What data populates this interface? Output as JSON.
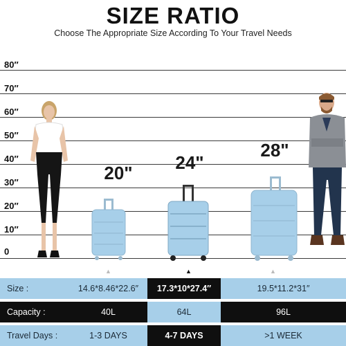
{
  "header": {
    "title": "SIZE RATIO",
    "subtitle": "Choose The Appropriate Size According To Your Travel Needs"
  },
  "scale": {
    "ticks": [
      "0",
      "10″",
      "20″",
      "30″",
      "40″",
      "50″",
      "60″",
      "70″",
      "80″"
    ]
  },
  "luggage": [
    {
      "label": "20\"",
      "height_in": 22.6
    },
    {
      "label": "24\"",
      "height_in": 27.4
    },
    {
      "label": "28\"",
      "height_in": 31
    }
  ],
  "colors": {
    "luggage_blue": "#a7cfe9",
    "row_light": "#a7cfe9",
    "row_dark": "#0f0f0f"
  },
  "table": {
    "rows": [
      {
        "label": "Size :",
        "values": [
          "14.6*8.46*22.6″",
          "17.3*10*27.4″",
          "19.5*11.2*31″"
        ]
      },
      {
        "label": "Capacity :",
        "values": [
          "40L",
          "64L",
          "96L"
        ]
      },
      {
        "label": "Travel Days :",
        "values": [
          "1-3 DAYS",
          "4-7 DAYS",
          ">1 WEEK"
        ]
      }
    ]
  }
}
